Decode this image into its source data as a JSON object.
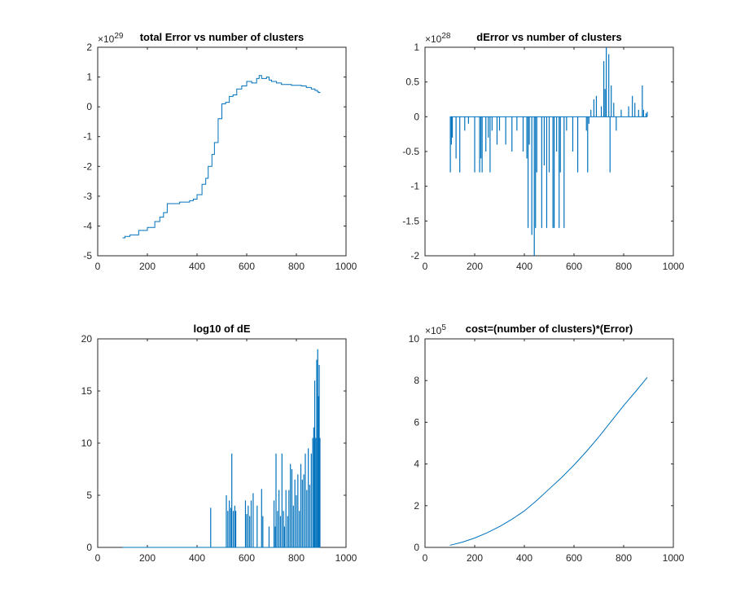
{
  "figure": {
    "background": "#ffffff",
    "line_color": "#0072bd",
    "axes_color": "#262626"
  },
  "chart_data": [
    {
      "type": "line",
      "title": "total Error vs number of clusters",
      "exponent_label": "×10",
      "exponent_power": "29",
      "xlim": [
        0,
        1000
      ],
      "ylim": [
        -5,
        2
      ],
      "xticks": [
        0,
        200,
        400,
        600,
        800,
        1000
      ],
      "yticks": [
        -5,
        -4,
        -3,
        -2,
        -1,
        0,
        1,
        2
      ],
      "xtick_labels": [
        "0",
        "200",
        "400",
        "600",
        "800",
        "1000"
      ],
      "ytick_labels": [
        "-5",
        "-4",
        "-3",
        "-2",
        "-1",
        "0",
        "1",
        "2"
      ],
      "series": [
        {
          "style": "step",
          "x": [
            100,
            110,
            130,
            165,
            200,
            230,
            250,
            265,
            280,
            330,
            370,
            385,
            400,
            420,
            435,
            445,
            460,
            470,
            485,
            500,
            515,
            530,
            545,
            560,
            580,
            600,
            620,
            640,
            650,
            660,
            680,
            690,
            700,
            720,
            740,
            760,
            780,
            800,
            820,
            840,
            860,
            875,
            885,
            890,
            895
          ],
          "y": [
            -4.4,
            -4.35,
            -4.3,
            -4.15,
            -4.05,
            -3.85,
            -3.7,
            -3.55,
            -3.25,
            -3.2,
            -3.15,
            -3.1,
            -2.95,
            -2.6,
            -2.4,
            -2.0,
            -1.6,
            -1.2,
            -0.4,
            0.1,
            0.15,
            0.35,
            0.4,
            0.6,
            0.7,
            0.85,
            0.8,
            0.95,
            1.05,
            0.95,
            1.0,
            0.9,
            0.85,
            0.8,
            0.75,
            0.75,
            0.72,
            0.72,
            0.7,
            0.65,
            0.6,
            0.55,
            0.5,
            0.48,
            0.5
          ]
        }
      ]
    },
    {
      "type": "line",
      "title": "dError vs number of clusters",
      "exponent_label": "×10",
      "exponent_power": "28",
      "xlim": [
        0,
        1000
      ],
      "ylim": [
        -2,
        1
      ],
      "xticks": [
        0,
        200,
        400,
        600,
        800,
        1000
      ],
      "yticks": [
        -2,
        -1.5,
        -1,
        -0.5,
        0,
        0.5,
        1
      ],
      "xtick_labels": [
        "0",
        "200",
        "400",
        "600",
        "800",
        "1000"
      ],
      "ytick_labels": [
        "-2",
        "-1.5",
        "-1",
        "-0.5",
        "0",
        "0.5",
        "1"
      ],
      "series": [
        {
          "style": "spikes",
          "x": [
            102,
            106,
            110,
            125,
            140,
            160,
            175,
            200,
            220,
            225,
            230,
            245,
            255,
            262,
            270,
            290,
            300,
            325,
            350,
            370,
            395,
            410,
            415,
            420,
            430,
            440,
            445,
            450,
            470,
            480,
            490,
            500,
            515,
            520,
            530,
            540,
            545,
            560,
            570,
            595,
            615,
            650,
            655,
            660,
            668,
            680,
            690,
            710,
            720,
            725,
            730,
            740,
            745,
            750,
            760,
            770,
            790,
            820,
            835,
            845,
            860,
            875,
            880,
            890,
            895
          ],
          "y": [
            -0.8,
            -0.4,
            -0.3,
            -0.6,
            -0.8,
            -0.2,
            -0.1,
            -0.8,
            -0.8,
            -0.6,
            -0.8,
            -0.5,
            -0.3,
            -0.8,
            -0.2,
            -0.4,
            -0.2,
            -0.4,
            -0.5,
            -0.2,
            -0.5,
            -0.6,
            -1.6,
            -0.4,
            -1.7,
            -2.0,
            -1.6,
            -0.8,
            -1.6,
            -0.7,
            -1.6,
            -0.8,
            -1.6,
            -1.6,
            -0.5,
            -1.6,
            -0.8,
            -1.6,
            -0.2,
            -0.5,
            -0.8,
            -0.2,
            -0.8,
            -0.1,
            0.1,
            0.25,
            0.3,
            0.15,
            0.8,
            0.4,
            1.0,
            0.9,
            -0.8,
            0.45,
            0.2,
            -0.2,
            0.1,
            0.15,
            0.3,
            0.2,
            0.1,
            0.45,
            0.1,
            0.05,
            0.07
          ]
        }
      ]
    },
    {
      "type": "line",
      "title": "log10 of dE",
      "xlim": [
        0,
        1000
      ],
      "ylim": [
        0,
        20
      ],
      "xticks": [
        0,
        200,
        400,
        600,
        800,
        1000
      ],
      "yticks": [
        0,
        5,
        10,
        15,
        20
      ],
      "xtick_labels": [
        "0",
        "200",
        "400",
        "600",
        "800",
        "1000"
      ],
      "ytick_labels": [
        "0",
        "5",
        "10",
        "15",
        "20"
      ],
      "series": [
        {
          "style": "spikes",
          "x": [
            455,
            518,
            524,
            530,
            536,
            540,
            546,
            552,
            556,
            595,
            600,
            606,
            612,
            618,
            626,
            642,
            660,
            665,
            690,
            710,
            715,
            718,
            724,
            730,
            736,
            742,
            748,
            752,
            758,
            765,
            770,
            776,
            782,
            788,
            794,
            800,
            806,
            812,
            818,
            824,
            830,
            836,
            842,
            848,
            854,
            860,
            866,
            870,
            874,
            878,
            882,
            886,
            889,
            892,
            895
          ],
          "y": [
            3.8,
            5.0,
            3.5,
            4.5,
            3.8,
            9.0,
            3.5,
            4.0,
            3.5,
            4.5,
            3.2,
            4.0,
            3.0,
            4.5,
            5.2,
            4.0,
            5.6,
            3.0,
            2.0,
            4.5,
            2.0,
            9.0,
            3.5,
            5.5,
            3.0,
            9.0,
            3.5,
            2.0,
            5.5,
            3.0,
            5.5,
            8.0,
            7.5,
            4.0,
            6.5,
            5.0,
            7.0,
            3.5,
            8.0,
            6.5,
            7.0,
            9.0,
            5.5,
            9.5,
            6.0,
            9.0,
            10.5,
            11.5,
            16.0,
            10.5,
            18.0,
            19.0,
            14.5,
            17.5,
            10.5
          ]
        }
      ]
    },
    {
      "type": "line",
      "title": "cost=(number of clusters)*(Error)",
      "exponent_label": "×10",
      "exponent_power": "5",
      "xlim": [
        0,
        1000
      ],
      "ylim": [
        0,
        10
      ],
      "xticks": [
        0,
        200,
        400,
        600,
        800,
        1000
      ],
      "yticks": [
        0,
        2,
        4,
        6,
        8,
        10
      ],
      "xtick_labels": [
        "0",
        "200",
        "400",
        "600",
        "800",
        "1000"
      ],
      "ytick_labels": [
        "0",
        "2",
        "4",
        "6",
        "8",
        "10"
      ],
      "series": [
        {
          "style": "line",
          "x": [
            100,
            150,
            200,
            250,
            300,
            350,
            400,
            450,
            500,
            550,
            600,
            650,
            700,
            750,
            800,
            850,
            895
          ],
          "y": [
            0.1,
            0.25,
            0.45,
            0.7,
            1.0,
            1.35,
            1.75,
            2.25,
            2.8,
            3.35,
            3.95,
            4.6,
            5.3,
            6.05,
            6.8,
            7.5,
            8.15
          ]
        }
      ]
    }
  ]
}
